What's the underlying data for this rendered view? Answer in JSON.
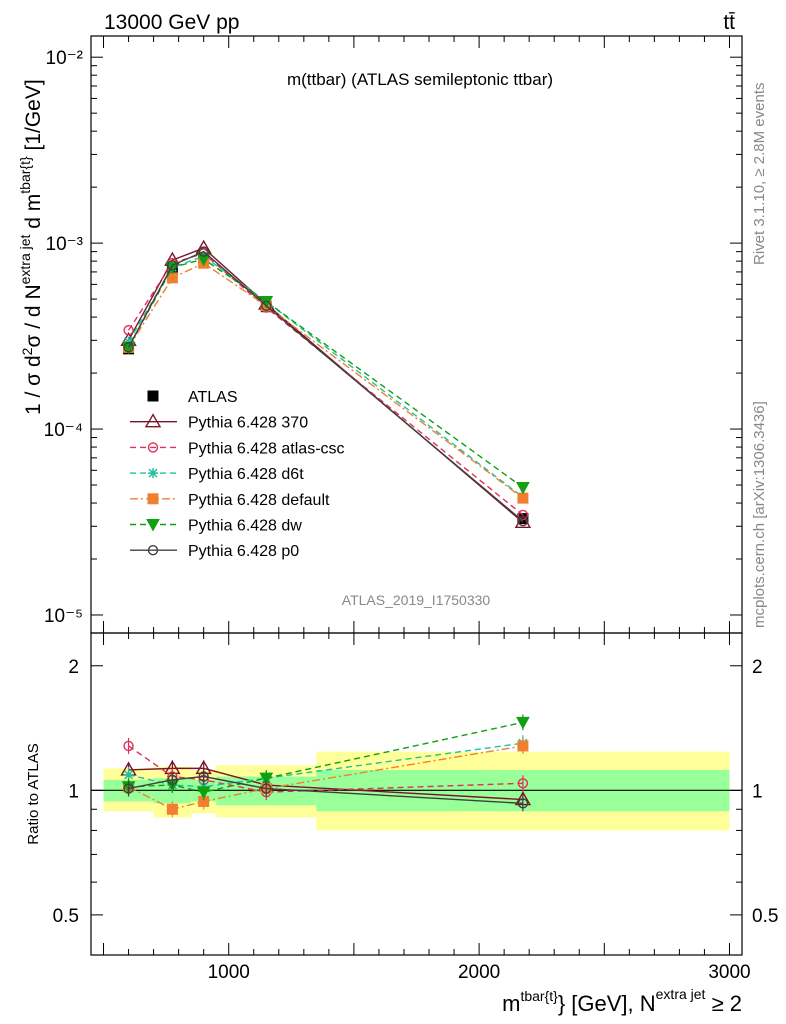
{
  "header": {
    "left": "13000 GeV pp",
    "right": "tt̄"
  },
  "side_labels": {
    "rivet": "Rivet 3.1.10, ≥ 2.8M events",
    "mcplots": "mcplots.cern.ch [arXiv:1306.3436]"
  },
  "chart_data": [
    {
      "type": "line",
      "title": "m(ttbar) (ATLAS semileptonic ttbar)",
      "watermark": "ATLAS_2019_I1750330",
      "ylabel": "1 / σ d²σ / d N^{extra jet} d m^{tbar{t}} [1/GeV]",
      "xlim": [
        450,
        3050
      ],
      "ylim": [
        8e-06,
        0.013
      ],
      "yscale": "log",
      "x_tick_labels": [
        "1000",
        "2000",
        "3000"
      ],
      "y_tick_labels": [
        "10⁻⁵",
        "10⁻⁴",
        "10⁻³",
        "10⁻²"
      ],
      "legend_position": "left-middle",
      "x": [
        600,
        775,
        900,
        1150,
        2175
      ],
      "series": [
        {
          "name": "ATLAS",
          "color": "#000000",
          "marker": "square",
          "values": [
            0.00027,
            0.00072,
            0.00083,
            0.000455,
            3.3e-05
          ]
        },
        {
          "name": "Pythia 6.428 370",
          "color": "#7a1428",
          "marker": "triangle-open",
          "dash": "",
          "values": [
            0.0003,
            0.00081,
            0.00094,
            0.00047,
            3.15e-05
          ]
        },
        {
          "name": "Pythia 6.428 atlas-csc",
          "color": "#e0305a",
          "marker": "circle-open",
          "dash": "6,4",
          "values": [
            0.00034,
            0.00078,
            0.00088,
            0.00045,
            3.45e-05
          ]
        },
        {
          "name": "Pythia 6.428 d6t",
          "color": "#20c0a0",
          "marker": "star",
          "dash": "6,4",
          "values": [
            0.000295,
            0.00074,
            0.00085,
            0.000485,
            4.3e-05
          ]
        },
        {
          "name": "Pythia 6.428 default",
          "color": "#f08030",
          "marker": "square-filled",
          "dash": "8,3,2,3",
          "values": [
            0.000275,
            0.00065,
            0.00078,
            0.00046,
            4.25e-05
          ]
        },
        {
          "name": "Pythia 6.428 dw",
          "color": "#10a010",
          "marker": "triangle-down",
          "dash": "6,4",
          "values": [
            0.000275,
            0.00074,
            0.00082,
            0.000485,
            4.85e-05
          ]
        },
        {
          "name": "Pythia 6.428 p0",
          "color": "#404040",
          "marker": "circle-open",
          "dash": "",
          "values": [
            0.000275,
            0.00076,
            0.0009,
            0.00046,
            3.2e-05
          ]
        }
      ]
    },
    {
      "type": "line",
      "ylabel": "Ratio to ATLAS",
      "xlabel": "m^{tbar{t}} [GeV], N^{extra jet} ≥ 2",
      "xlim": [
        450,
        3050
      ],
      "ylim": [
        0.4,
        2.4
      ],
      "yscale": "log",
      "x_tick_labels": [
        "1000",
        "2000",
        "3000"
      ],
      "y_tick_labels": [
        "0.5",
        "1",
        "2"
      ],
      "bins": [
        [
          500,
          700
        ],
        [
          700,
          850
        ],
        [
          850,
          950
        ],
        [
          950,
          1350
        ],
        [
          1350,
          3000
        ]
      ],
      "band_inner": [
        [
          0.94,
          1.06
        ],
        [
          0.93,
          1.07
        ],
        [
          0.94,
          1.06
        ],
        [
          0.92,
          1.08
        ],
        [
          0.89,
          1.12
        ]
      ],
      "band_outer": [
        [
          0.89,
          1.13
        ],
        [
          0.86,
          1.14
        ],
        [
          0.88,
          1.12
        ],
        [
          0.86,
          1.15
        ],
        [
          0.8,
          1.24
        ]
      ],
      "x": [
        600,
        775,
        900,
        1150,
        2175
      ],
      "series": [
        {
          "name": "Pythia 6.428 370",
          "values": [
            1.12,
            1.13,
            1.13,
            1.03,
            0.95
          ]
        },
        {
          "name": "Pythia 6.428 atlas-csc",
          "values": [
            1.28,
            1.08,
            1.06,
            0.99,
            1.04
          ]
        },
        {
          "name": "Pythia 6.428 d6t",
          "values": [
            1.09,
            1.03,
            1.02,
            1.07,
            1.3
          ]
        },
        {
          "name": "Pythia 6.428 default",
          "values": [
            1.02,
            0.9,
            0.94,
            1.01,
            1.28
          ]
        },
        {
          "name": "Pythia 6.428 dw",
          "values": [
            1.02,
            1.03,
            0.99,
            1.07,
            1.46
          ]
        },
        {
          "name": "Pythia 6.428 p0",
          "values": [
            1.01,
            1.06,
            1.08,
            1.01,
            0.93
          ]
        }
      ]
    }
  ]
}
